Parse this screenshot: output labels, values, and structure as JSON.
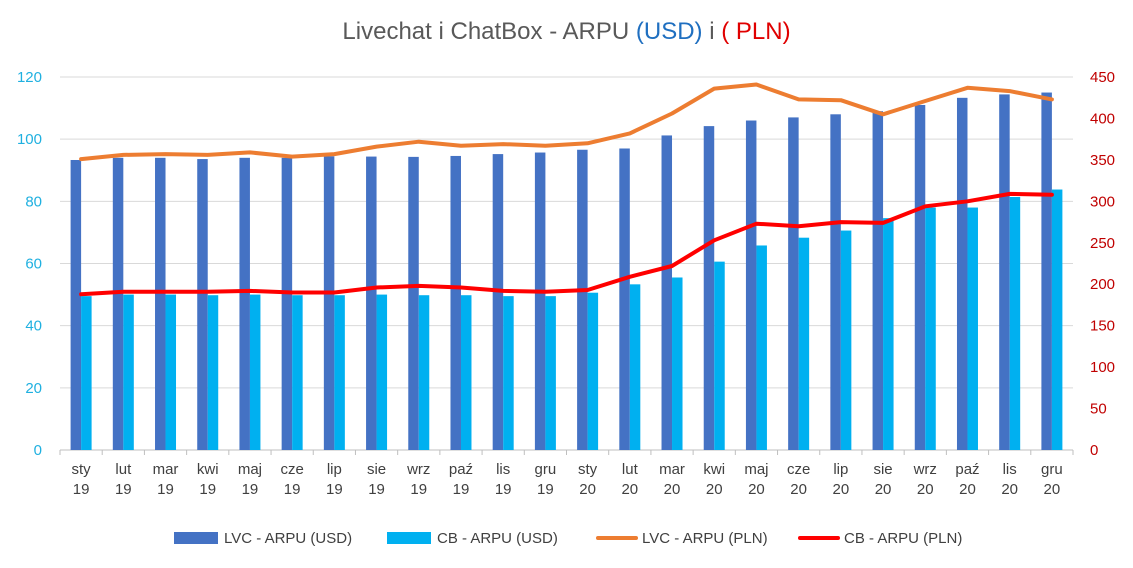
{
  "title": {
    "prefix": "Livechat i ChatBox - ARPU ",
    "usd": "(USD)",
    "middle": " i ",
    "pln": "( PLN)"
  },
  "chart_data": {
    "type": "bar",
    "categories": [
      "sty 19",
      "lut 19",
      "mar 19",
      "kwi 19",
      "maj 19",
      "cze 19",
      "lip 19",
      "sie 19",
      "wrz 19",
      "paź 19",
      "lis 19",
      "gru 19",
      "sty 20",
      "lut 20",
      "mar 20",
      "kwi 20",
      "maj 20",
      "cze 20",
      "lip 20",
      "sie 20",
      "wrz 20",
      "paź 20",
      "lis 20",
      "gru 20"
    ],
    "y_left": {
      "range": [
        0,
        120
      ],
      "ticks": [
        0,
        20,
        40,
        60,
        80,
        100,
        120
      ],
      "color": "#1fb0e0"
    },
    "y_right": {
      "range": [
        0,
        450
      ],
      "ticks": [
        0,
        50,
        100,
        150,
        200,
        250,
        300,
        350,
        400,
        450
      ],
      "color": "#c00000"
    },
    "grid": true,
    "legend_position": "bottom",
    "series": [
      {
        "name": "LVC - ARPU (USD)",
        "type": "bar",
        "axis": "left",
        "color": "#4472c4",
        "values": [
          93.3,
          94,
          94,
          93.6,
          94,
          94,
          94.5,
          94.4,
          94.3,
          94.6,
          95.2,
          95.7,
          96.6,
          97,
          101.2,
          104.2,
          106,
          107,
          108,
          109,
          111,
          113.3,
          114.4,
          115
        ]
      },
      {
        "name": "CB - ARPU (USD)",
        "type": "bar",
        "axis": "left",
        "color": "#00b0f0",
        "values": [
          49.5,
          50,
          50,
          49.8,
          50,
          49.8,
          49.8,
          50,
          49.8,
          49.8,
          49.5,
          49.5,
          50.6,
          53.3,
          55.5,
          60.6,
          65.8,
          68.3,
          70.6,
          74.6,
          78,
          78,
          81.4,
          83.8
        ]
      },
      {
        "name": "LVC - ARPU (PLN)",
        "type": "line",
        "axis": "right",
        "color": "#ed7d31",
        "values": [
          351,
          356,
          357,
          356,
          359,
          354,
          357,
          366,
          372,
          367,
          369,
          367,
          370,
          382,
          406,
          436,
          441,
          423,
          422,
          405,
          421,
          437,
          433,
          423
        ]
      },
      {
        "name": "CB - ARPU (PLN)",
        "type": "line",
        "axis": "right",
        "color": "#ff0000",
        "values": [
          188,
          191,
          191,
          191,
          192,
          190,
          190,
          196,
          198,
          196,
          192,
          191,
          193,
          209,
          222,
          253,
          273,
          270,
          275,
          274,
          294,
          300,
          309,
          308
        ]
      }
    ]
  }
}
